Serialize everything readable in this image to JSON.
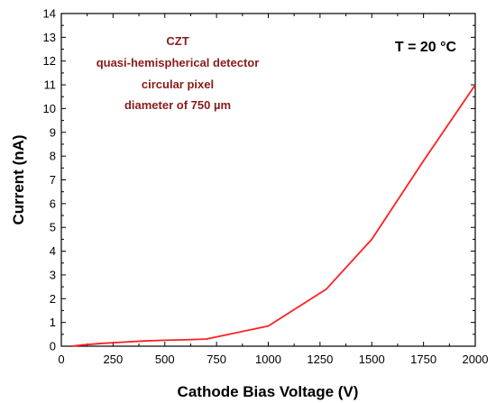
{
  "chart_data": {
    "type": "line",
    "title": "",
    "xlabel": "Cathode Bias Voltage (V)",
    "ylabel": "Current (nA)",
    "xlim": [
      0,
      2000
    ],
    "ylim": [
      0,
      14
    ],
    "x_ticks": [
      0,
      250,
      500,
      750,
      1000,
      1250,
      1500,
      1750,
      2000
    ],
    "y_ticks": [
      0,
      1,
      2,
      3,
      4,
      5,
      6,
      7,
      8,
      9,
      10,
      11,
      12,
      13,
      14
    ],
    "grid": false,
    "series": [
      {
        "color": "#ff2020",
        "x": [
          50,
          100,
          200,
          300,
          400,
          500,
          600,
          700,
          1000,
          1280,
          1500,
          1750,
          2000
        ],
        "y": [
          0.0,
          0.05,
          0.12,
          0.17,
          0.22,
          0.25,
          0.27,
          0.3,
          0.85,
          2.4,
          4.5,
          7.8,
          11.0
        ]
      }
    ],
    "annotations": {
      "material": "CZT",
      "detector": "quasi-hemispherical detector",
      "pixel": "circular pixel",
      "diameter": "diameter of 750 µm",
      "temperature": "T = 20 °C"
    },
    "annotation_color": "#8b1a1a"
  }
}
